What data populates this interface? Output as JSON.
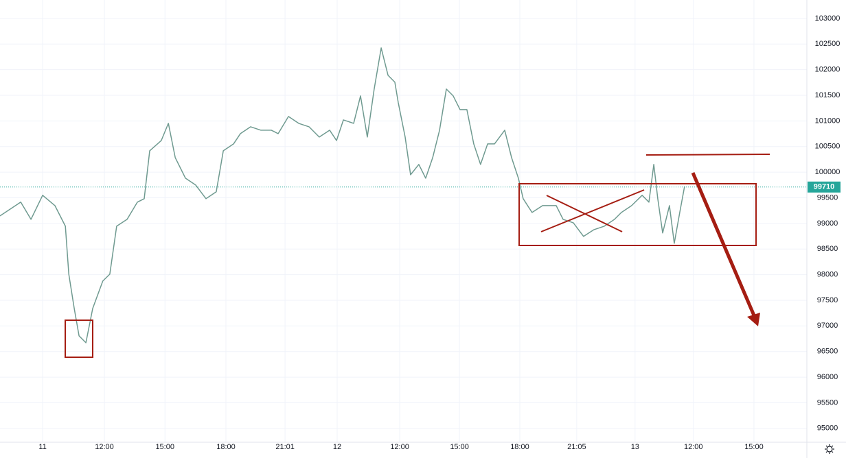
{
  "chart_data": {
    "type": "line",
    "x": [
      -2.12,
      -1.09,
      -0.58,
      0,
      0.61,
      1.13,
      1.3,
      1.57,
      1.81,
      2.15,
      2.49,
      2.99,
      3.34,
      3.68,
      4.2,
      4.71,
      5.05,
      5.32,
      5.9,
      6.25,
      6.59,
      7.1,
      7.61,
      8.12,
      8.63,
      8.98,
      9.49,
      9.83,
      10.34,
      10.85,
      11.37,
      11.71,
      12.22,
      12.73,
      13.24,
      13.75,
      14.27,
      14.61,
      14.95,
      15.46,
      15.8,
      16.14,
      16.48,
      16.83,
      17.17,
      17.51,
      17.68,
      18.02,
      18.29,
      18.7,
      19.04,
      19.39,
      19.73,
      20.07,
      20.41,
      20.75,
      21.09,
      21.43,
      21.77,
      22.12,
      22.46,
      22.97,
      23.31,
      23.65,
      23.89,
      24.33,
      24.85,
      25.53,
      25.87,
      26.38,
      26.89,
      27.41,
      27.92,
      28.43,
      28.77,
      29.28,
      29.8,
      30.14,
      30.38,
      30.58,
      30.82,
      31.16,
      31.4,
      31.67,
      31.91
    ],
    "series": [
      {
        "color": "#6f9a90",
        "values": [
          99147,
          99415,
          99080,
          99550,
          99348,
          98946,
          98010,
          97341,
          96806,
          96672,
          97341,
          97876,
          98010,
          98946,
          99080,
          99415,
          99482,
          100418,
          100619,
          100953,
          100284,
          99883,
          99749,
          99482,
          99616,
          100418,
          100552,
          100752,
          100886,
          100819,
          100819,
          100752,
          101087,
          100953,
          100886,
          100685,
          100819,
          100619,
          101020,
          100953,
          101488,
          100685,
          101622,
          102425,
          101890,
          101756,
          101355,
          100685,
          99950,
          100151,
          99883,
          100284,
          100819,
          101622,
          101488,
          101221,
          101221,
          100552,
          100151,
          100552,
          100552,
          100819,
          100284,
          99883,
          99482,
          99214,
          99348,
          99348,
          99080,
          99013,
          98746,
          98879,
          98946,
          99080,
          99214,
          99348,
          99549,
          99415,
          100151,
          99482,
          98813,
          99348,
          98612,
          99214,
          99722
        ]
      }
    ],
    "last_price": 99710,
    "last_price_color": "#26a69a",
    "xlim": [
      -2.12,
      37.99
    ],
    "xticks": [
      {
        "value": 0,
        "label": "11"
      },
      {
        "value": 3.07,
        "label": "12:00"
      },
      {
        "value": 6.08,
        "label": "15:00"
      },
      {
        "value": 9.11,
        "label": "18:00"
      },
      {
        "value": 12.05,
        "label": "21:01"
      },
      {
        "value": 14.64,
        "label": "12"
      },
      {
        "value": 17.75,
        "label": "12:00"
      },
      {
        "value": 20.72,
        "label": "15:00"
      },
      {
        "value": 23.72,
        "label": "18:00"
      },
      {
        "value": 26.55,
        "label": "21:05"
      },
      {
        "value": 29.45,
        "label": "13"
      },
      {
        "value": 32.35,
        "label": "12:00"
      },
      {
        "value": 35.36,
        "label": "15:00"
      }
    ],
    "ylim": [
      94730,
      103360
    ],
    "yticks": [
      95000,
      95500,
      96000,
      96500,
      97000,
      97500,
      98000,
      98500,
      99000,
      99500,
      100000,
      100500,
      101000,
      101500,
      102000,
      102500,
      103000
    ],
    "grid": true
  }
}
